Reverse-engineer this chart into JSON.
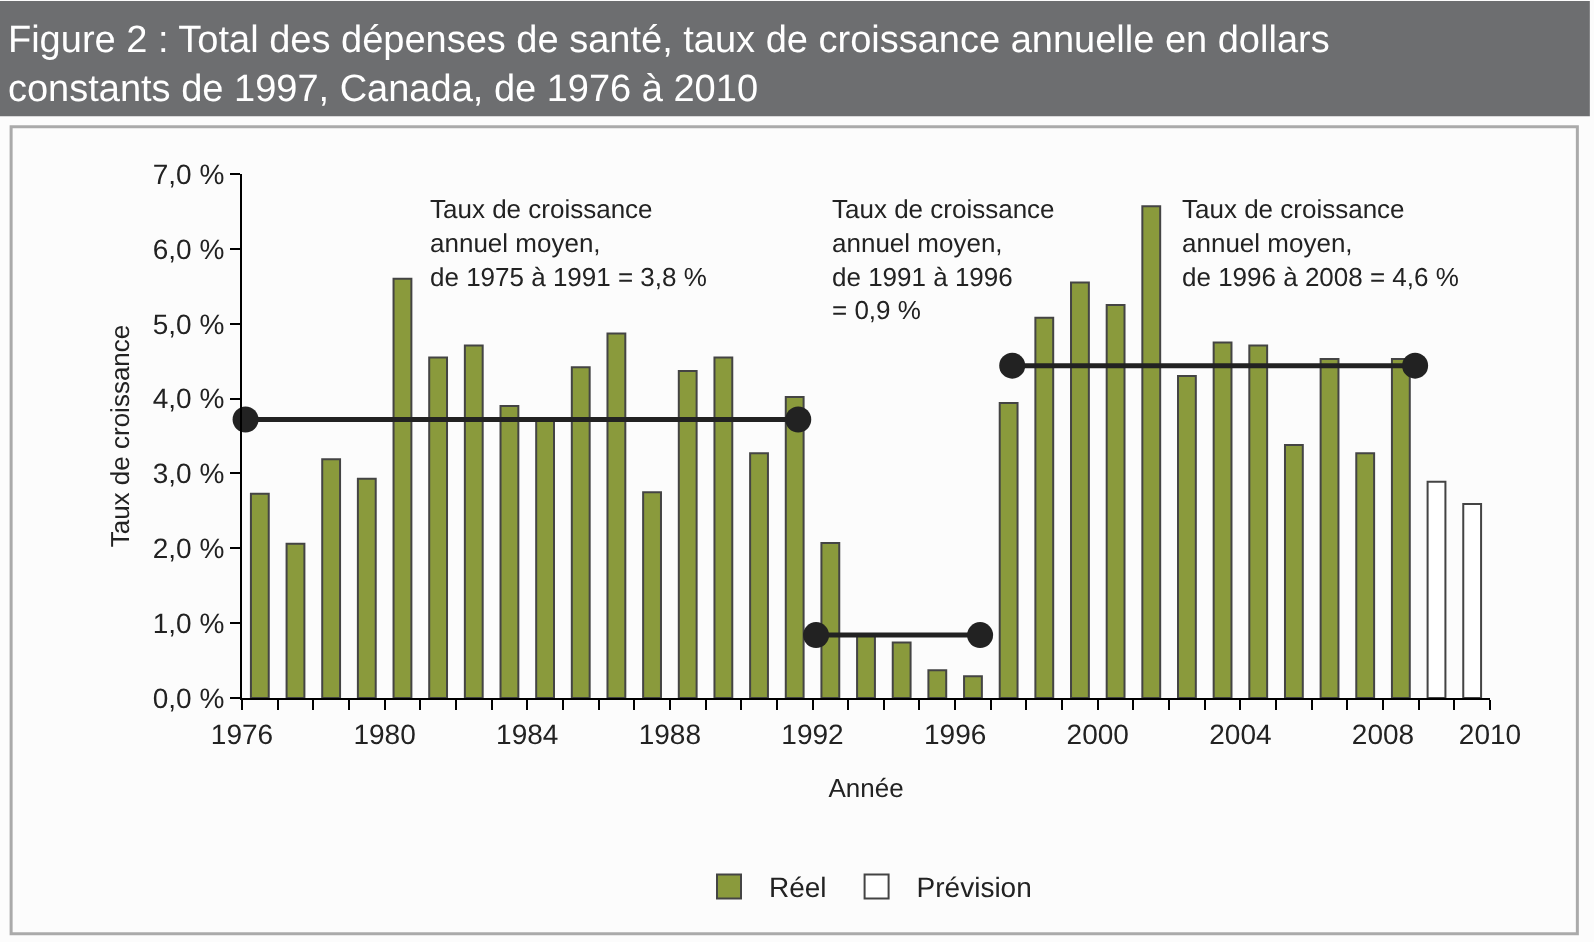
{
  "chart_data": {
    "type": "bar",
    "title": "Figure 2 : Total des dépenses de santé, taux de croissance annuelle en dollars\nconstants de 1997, Canada, de 1976 à 2010",
    "xlabel": "Année",
    "ylabel": "Taux de croissance",
    "x": [
      1976,
      1977,
      1978,
      1979,
      1980,
      1981,
      1982,
      1983,
      1984,
      1985,
      1986,
      1987,
      1988,
      1989,
      1990,
      1991,
      1992,
      1993,
      1994,
      1995,
      1996,
      1997,
      1998,
      1999,
      2000,
      2001,
      2002,
      2003,
      2004,
      2005,
      2006,
      2007,
      2008,
      2009,
      2010
    ],
    "series": [
      {
        "name": "Réel",
        "color": "#8a9a3c",
        "values": [
          2.73,
          2.06,
          3.19,
          2.93,
          5.6,
          4.55,
          4.71,
          3.9,
          3.72,
          4.42,
          4.87,
          2.75,
          4.37,
          4.55,
          3.27,
          4.02,
          2.07,
          0.84,
          0.74,
          0.37,
          0.29,
          3.94,
          5.08,
          5.55,
          5.25,
          6.57,
          4.3,
          4.75,
          4.71,
          3.38,
          4.53,
          3.27,
          4.53,
          null,
          null
        ]
      },
      {
        "name": "Prévision",
        "color": "#ffffff",
        "values": [
          null,
          null,
          null,
          null,
          null,
          null,
          null,
          null,
          null,
          null,
          null,
          null,
          null,
          null,
          null,
          null,
          null,
          null,
          null,
          null,
          null,
          null,
          null,
          null,
          null,
          null,
          null,
          null,
          null,
          null,
          null,
          null,
          null,
          2.89,
          2.59
        ]
      },
      {
        "type": "line",
        "color": "#222222",
        "x": [
          1975.6,
          1991.1
        ],
        "values": [
          3.72,
          3.72
        ],
        "marker": "circle"
      },
      {
        "type": "line",
        "color": "#222222",
        "x": [
          1991.6,
          1996.2
        ],
        "values": [
          0.84,
          0.84
        ],
        "marker": "circle"
      },
      {
        "type": "line",
        "color": "#222222",
        "x": [
          1997.1,
          2008.4
        ],
        "values": [
          4.44,
          4.44
        ],
        "marker": "circle"
      }
    ],
    "annotations": [
      "Taux de croissance\nannuel moyen,\nde 1975 à 1991 = 3,8 %",
      "Taux de croissance\nannuel moyen,\nde 1991 à 1996\n= 0,9 %",
      "Taux de croissance\nannuel moyen,\nde 1996 à 2008 = 4,6 %"
    ],
    "xlim": [
      1975.5,
      2010.5
    ],
    "xticks": [
      {
        "value": 1975.5,
        "label": "1976"
      },
      {
        "value": 1976.5,
        "label": null
      },
      {
        "value": 1977.5,
        "label": null
      },
      {
        "value": 1978.5,
        "label": null
      },
      {
        "value": 1979.5,
        "label": "1980"
      },
      {
        "value": 1980.5,
        "label": null
      },
      {
        "value": 1981.5,
        "label": null
      },
      {
        "value": 1982.5,
        "label": null
      },
      {
        "value": 1983.5,
        "label": "1984"
      },
      {
        "value": 1984.5,
        "label": null
      },
      {
        "value": 1985.5,
        "label": null
      },
      {
        "value": 1986.5,
        "label": null
      },
      {
        "value": 1987.5,
        "label": "1988"
      },
      {
        "value": 1988.5,
        "label": null
      },
      {
        "value": 1989.5,
        "label": null
      },
      {
        "value": 1990.5,
        "label": null
      },
      {
        "value": 1991.5,
        "label": "1992"
      },
      {
        "value": 1992.5,
        "label": null
      },
      {
        "value": 1993.5,
        "label": null
      },
      {
        "value": 1994.5,
        "label": null
      },
      {
        "value": 1995.5,
        "label": "1996"
      },
      {
        "value": 1996.5,
        "label": null
      },
      {
        "value": 1997.5,
        "label": null
      },
      {
        "value": 1998.5,
        "label": null
      },
      {
        "value": 1999.5,
        "label": "2000"
      },
      {
        "value": 2000.5,
        "label": null
      },
      {
        "value": 2001.5,
        "label": null
      },
      {
        "value": 2002.5,
        "label": null
      },
      {
        "value": 2003.5,
        "label": "2004"
      },
      {
        "value": 2004.5,
        "label": null
      },
      {
        "value": 2005.5,
        "label": null
      },
      {
        "value": 2006.5,
        "label": null
      },
      {
        "value": 2007.5,
        "label": "2008"
      },
      {
        "value": 2008.5,
        "label": null
      },
      {
        "value": 2009.5,
        "label": null
      },
      {
        "value": 2010.5,
        "label": "2010"
      }
    ],
    "ylim": [
      0,
      7
    ],
    "yticks": [
      {
        "value": 0,
        "label": "0,0 %"
      },
      {
        "value": 1,
        "label": "1,0 %"
      },
      {
        "value": 2,
        "label": "2,0 %"
      },
      {
        "value": 3,
        "label": "3,0 %"
      },
      {
        "value": 4,
        "label": "4,0 %"
      },
      {
        "value": 5,
        "label": "5,0 %"
      },
      {
        "value": 6,
        "label": "6,0 %"
      },
      {
        "value": 7,
        "label": "7,0 %"
      }
    ],
    "legend": "bottom"
  }
}
